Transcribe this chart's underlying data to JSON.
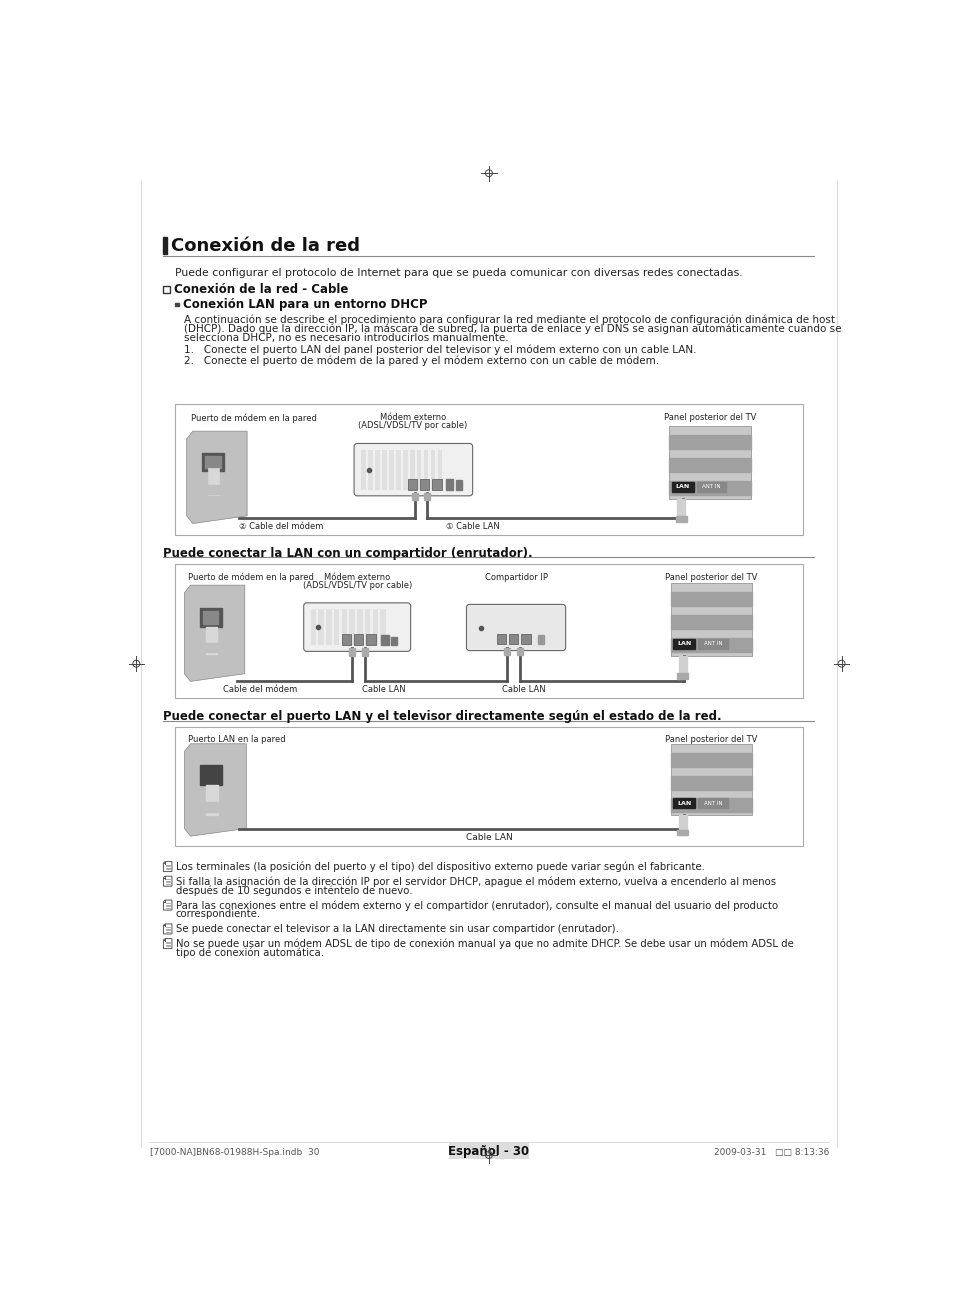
{
  "bg_color": "#ffffff",
  "title": "Conexión de la red",
  "subtitle1": "Conexión de la red - Cable",
  "section_heading": "Conexión LAN para un entorno DHCP",
  "intro_text": "Puede configurar el protocolo de Internet para que se pueda comunicar con diversas redes conectadas.",
  "dhcp_line1": "A continuación se describe el procedimiento para configurar la red mediante el protocolo de configuración dinámica de host",
  "dhcp_line2": "(DHCP). Dado que la dirección IP, la máscara de subred, la puerta de enlace y el DNS se asignan automáticamente cuando se",
  "dhcp_line3": "selecciona DHCP, no es necesario introducirlos manualmente.",
  "step1": "1.   Conecte el puerto LAN del panel posterior del televisor y el módem externo con un cable LAN.",
  "step2": "2.   Conecte el puerto de módem de la pared y el módem externo con un cable de módem.",
  "d1_lbl_wall": "Puerto de módem en la pared",
  "d1_lbl_modem1": "Módem externo",
  "d1_lbl_modem2": "(ADSL/VDSL/TV por cable)",
  "d1_lbl_tv": "Panel posterior del TV",
  "d1_cable1": "② Cable del módem",
  "d1_cable2": "① Cable LAN",
  "heading2": "Puede conectar la LAN con un compartidor (enrutador).",
  "d2_lbl_wall": "Puerto de módem en la pared",
  "d2_lbl_modem1": "Módem externo",
  "d2_lbl_modem2": "(ADSL/VDSL/TV por cable)",
  "d2_lbl_router": "Compartidor IP",
  "d2_lbl_tv": "Panel posterior del TV",
  "d2_cable1": "Cable del módem",
  "d2_cable2": "Cable LAN",
  "d2_cable3": "Cable LAN",
  "heading3": "Puede conectar el puerto LAN y el televisor directamente según el estado de la red.",
  "d3_lbl_wall": "Puerto LAN en la pared",
  "d3_lbl_tv": "Panel posterior del TV",
  "d3_cable": "Cable LAN",
  "note1": "Los terminales (la posición del puerto y el tipo) del dispositivo externo puede variar según el fabricante.",
  "note2a": "Si falla la asignación de la dirección IP por el servidor DHCP, apague el módem externo, vuelva a encenderlo al menos",
  "note2b": "después de 10 segundos e inténtelo de nuevo.",
  "note3a": "Para las conexiones entre el módem externo y el compartidor (enrutador), consulte el manual del usuario del producto",
  "note3b": "correspondiente.",
  "note4": "Se puede conectar el televisor a la LAN directamente sin usar compartidor (enrutador).",
  "note5a": "No se puede usar un módem ADSL de tipo de conexión manual ya que no admite DHCP. Se debe usar un módem ADSL de",
  "note5b": "tipo de conexión automática.",
  "footer_text": "Español - 30",
  "footer_left": "[7000-NA]BN68-01988H-Spa.indb  30",
  "footer_right": "2009-03-31   □□ 8:13:36"
}
